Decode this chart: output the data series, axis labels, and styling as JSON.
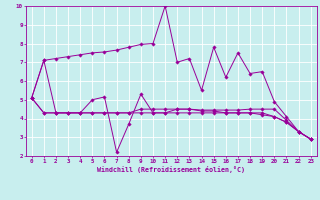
{
  "xlabel": "Windchill (Refroidissement éolien,°C)",
  "background_color": "#c8eeee",
  "grid_color": "#ffffff",
  "line_color": "#990099",
  "xlim": [
    -0.5,
    23.5
  ],
  "ylim": [
    2,
    10
  ],
  "xticks": [
    0,
    1,
    2,
    3,
    4,
    5,
    6,
    7,
    8,
    9,
    10,
    11,
    12,
    13,
    14,
    15,
    16,
    17,
    18,
    19,
    20,
    21,
    22,
    23
  ],
  "yticks": [
    2,
    3,
    4,
    5,
    6,
    7,
    8,
    9,
    10
  ],
  "series": [
    [
      5.1,
      7.1,
      7.2,
      7.3,
      7.4,
      7.5,
      7.55,
      7.65,
      7.8,
      7.95,
      8.0,
      10.0,
      7.0,
      7.2,
      5.5,
      7.8,
      6.2,
      7.5,
      6.4,
      6.5,
      4.9,
      4.1,
      3.3,
      2.9
    ],
    [
      5.1,
      7.1,
      4.3,
      4.3,
      4.3,
      5.0,
      5.15,
      2.2,
      3.7,
      5.3,
      4.3,
      4.3,
      4.5,
      4.5,
      4.4,
      4.4,
      4.3,
      4.3,
      4.3,
      4.2,
      4.1,
      3.8,
      3.3,
      2.9
    ],
    [
      5.1,
      4.3,
      4.3,
      4.3,
      4.3,
      4.3,
      4.3,
      4.3,
      4.3,
      4.3,
      4.3,
      4.3,
      4.3,
      4.3,
      4.3,
      4.3,
      4.3,
      4.3,
      4.3,
      4.3,
      4.1,
      3.8,
      3.3,
      2.9
    ],
    [
      5.1,
      4.3,
      4.3,
      4.3,
      4.3,
      4.3,
      4.3,
      4.3,
      4.3,
      4.5,
      4.5,
      4.5,
      4.5,
      4.5,
      4.45,
      4.45,
      4.45,
      4.45,
      4.5,
      4.5,
      4.5,
      3.9,
      3.3,
      2.9
    ]
  ],
  "marker": "D",
  "marker_size": 1.8,
  "linewidth": 0.7
}
